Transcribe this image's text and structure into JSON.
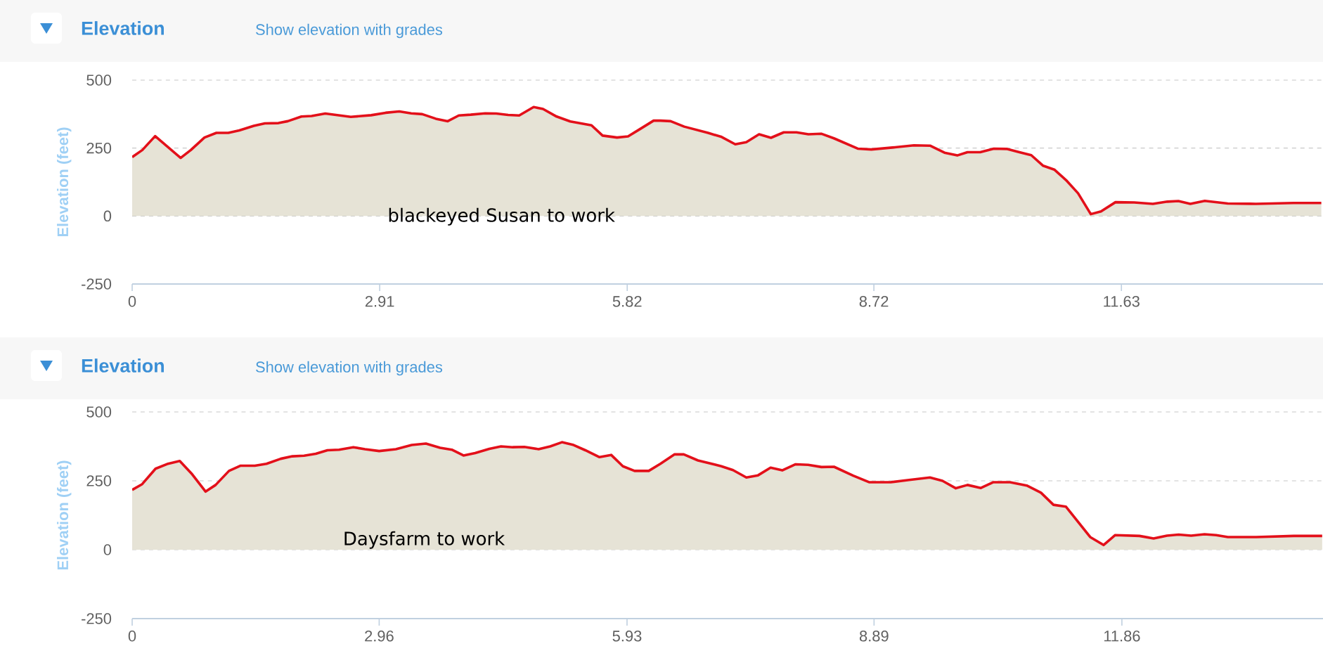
{
  "chart_data": [
    {
      "type": "area",
      "title": "Elevation",
      "subtitle": "Show elevation with grades",
      "ylabel": "Elevation (feet)",
      "x": [
        0,
        0.12,
        0.27,
        0.57,
        0.69,
        0.85,
        0.99,
        1.13,
        1.26,
        1.43,
        1.56,
        1.72,
        1.83,
        1.99,
        2.11,
        2.27,
        2.57,
        2.81,
        2.98,
        3.14,
        3.28,
        3.41,
        3.57,
        3.71,
        3.84,
        3.98,
        4.15,
        4.28,
        4.42,
        4.55,
        4.72,
        4.83,
        4.99,
        5.15,
        5.4,
        5.53,
        5.7,
        5.83,
        5.97,
        6.13,
        6.21,
        6.33,
        6.49,
        6.77,
        6.93,
        7.09,
        7.22,
        7.37,
        7.51,
        7.66,
        7.81,
        7.95,
        8.1,
        8.25,
        8.53,
        8.69,
        8.97,
        9.19,
        9.38,
        9.55,
        9.7,
        9.82,
        9.97,
        10.13,
        10.28,
        10.43,
        10.57,
        10.71,
        10.84,
        10.98,
        11.12,
        11.27,
        11.39,
        11.56,
        11.78,
        12.0,
        12.17,
        12.3,
        12.44,
        12.61,
        12.88,
        13.21,
        13.65,
        13.98
      ],
      "series": [
        {
          "color": "#e3101a",
          "values": [
            217,
            243,
            294,
            214,
            243,
            289,
            306,
            306,
            315,
            332,
            341,
            342,
            349,
            366,
            368,
            377,
            365,
            371,
            380,
            385,
            378,
            375,
            358,
            349,
            370,
            373,
            378,
            377,
            372,
            370,
            401,
            394,
            366,
            348,
            334,
            296,
            289,
            293,
            320,
            351,
            351,
            349,
            329,
            306,
            291,
            264,
            272,
            301,
            288,
            308,
            308,
            301,
            303,
            286,
            248,
            245,
            253,
            260,
            259,
            233,
            223,
            235,
            235,
            248,
            247,
            235,
            224,
            185,
            171,
            132,
            84,
            7,
            17,
            51,
            50,
            45,
            53,
            55,
            45,
            56,
            46,
            45,
            48,
            48
          ]
        }
      ],
      "xlim": [
        0,
        14.0
      ],
      "ylim": [
        -250,
        500
      ],
      "xticks": [
        0,
        2.91,
        5.82,
        8.72,
        11.63
      ],
      "yticks": [
        -250,
        0,
        250,
        500
      ],
      "grid": "y",
      "annotations": [
        "blackeyed Susan to work"
      ]
    },
    {
      "type": "area",
      "title": "Elevation",
      "subtitle": "Show elevation with grades",
      "ylabel": "Elevation (feet)",
      "x": [
        0,
        0.12,
        0.28,
        0.43,
        0.57,
        0.71,
        0.88,
        1.0,
        1.16,
        1.3,
        1.47,
        1.61,
        1.78,
        1.92,
        2.06,
        2.2,
        2.34,
        2.48,
        2.65,
        2.79,
        2.96,
        3.16,
        3.35,
        3.52,
        3.69,
        3.83,
        3.97,
        4.11,
        4.28,
        4.42,
        4.56,
        4.7,
        4.87,
        5.01,
        5.15,
        5.29,
        5.43,
        5.6,
        5.74,
        5.88,
        6.02,
        6.19,
        6.33,
        6.5,
        6.61,
        6.78,
        7.06,
        7.2,
        7.36,
        7.5,
        7.65,
        7.79,
        7.95,
        8.1,
        8.26,
        8.41,
        8.64,
        8.83,
        9.09,
        9.31,
        9.56,
        9.71,
        9.87,
        10.01,
        10.17,
        10.32,
        10.52,
        10.72,
        10.89,
        11.04,
        11.19,
        11.48,
        11.64,
        11.78,
        12.07,
        12.24,
        12.4,
        12.54,
        12.69,
        12.85,
        12.99,
        13.13,
        13.47,
        13.92,
        14.26
      ],
      "series": [
        {
          "color": "#e3101a",
          "values": [
            217,
            238,
            294,
            312,
            322,
            277,
            211,
            235,
            286,
            305,
            305,
            312,
            330,
            339,
            341,
            348,
            361,
            363,
            372,
            365,
            358,
            365,
            380,
            385,
            370,
            363,
            342,
            351,
            366,
            375,
            372,
            373,
            365,
            375,
            390,
            380,
            361,
            336,
            344,
            303,
            286,
            286,
            312,
            346,
            346,
            324,
            303,
            289,
            262,
            270,
            298,
            288,
            310,
            308,
            300,
            301,
            269,
            245,
            245,
            253,
            262,
            250,
            223,
            235,
            224,
            245,
            245,
            233,
            207,
            163,
            156,
            46,
            17,
            53,
            50,
            41,
            51,
            55,
            51,
            56,
            53,
            46,
            46,
            50,
            50
          ]
        }
      ],
      "xlim": [
        0,
        14.27
      ],
      "ylim": [
        -250,
        500
      ],
      "xticks": [
        0,
        2.96,
        5.93,
        8.89,
        11.86
      ],
      "yticks": [
        -250,
        0,
        250,
        500
      ],
      "grid": "y",
      "annotations": [
        "Daysfarm to work"
      ]
    }
  ]
}
